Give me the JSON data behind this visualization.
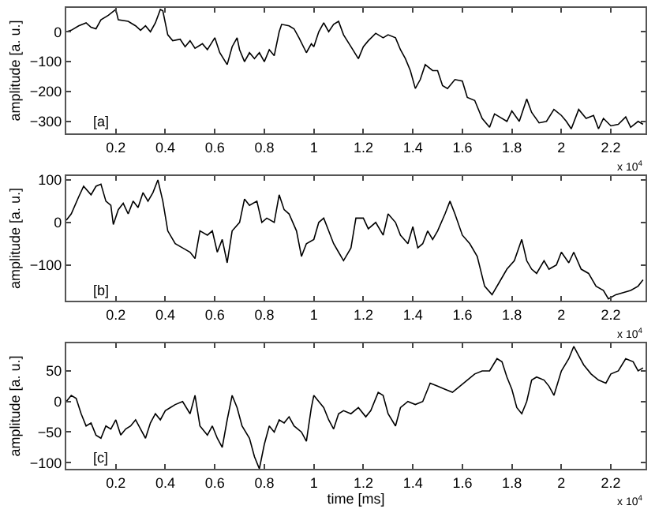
{
  "chart_data": [
    {
      "type": "line",
      "ylabel": "amplitude [a. u.]",
      "annotations": [
        "[a]",
        "x 10$^{4}$"
      ],
      "xlim": [
        0,
        2.34
      ],
      "xticks": [
        0.2,
        0.4,
        0.6,
        0.8,
        1,
        1.2,
        1.4,
        1.6,
        1.8,
        2,
        2.2
      ],
      "ylim": [
        -340,
        80
      ],
      "yticks": [
        -300,
        -200,
        -100,
        0
      ],
      "marker": "none",
      "line_style": "solid",
      "series": [
        {
          "color": "#000000",
          "x": [
            0,
            0.02,
            0.05,
            0.08,
            0.1,
            0.12,
            0.14,
            0.17,
            0.2,
            0.21,
            0.25,
            0.28,
            0.3,
            0.32,
            0.34,
            0.36,
            0.38,
            0.39,
            0.41,
            0.43,
            0.46,
            0.48,
            0.5,
            0.52,
            0.55,
            0.57,
            0.6,
            0.62,
            0.65,
            0.67,
            0.69,
            0.7,
            0.72,
            0.74,
            0.76,
            0.78,
            0.8,
            0.82,
            0.84,
            0.86,
            0.87,
            0.9,
            0.92,
            0.94,
            0.97,
            0.99,
            1.0,
            1.02,
            1.04,
            1.06,
            1.08,
            1.1,
            1.12,
            1.15,
            1.18,
            1.2,
            1.22,
            1.25,
            1.28,
            1.3,
            1.33,
            1.35,
            1.37,
            1.39,
            1.41,
            1.43,
            1.45,
            1.48,
            1.5,
            1.52,
            1.54,
            1.57,
            1.6,
            1.62,
            1.65,
            1.68,
            1.71,
            1.73,
            1.75,
            1.78,
            1.8,
            1.83,
            1.86,
            1.88,
            1.91,
            1.94,
            1.97,
            2.0,
            2.02,
            2.04,
            2.07,
            2.1,
            2.13,
            2.15,
            2.17,
            2.2,
            2.23,
            2.26,
            2.28,
            2.31,
            2.33
          ],
          "values": [
            0,
            5,
            20,
            30,
            15,
            10,
            40,
            55,
            75,
            40,
            35,
            20,
            5,
            20,
            0,
            30,
            75,
            70,
            -10,
            -30,
            -25,
            -50,
            -30,
            -55,
            -40,
            -60,
            -20,
            -70,
            -110,
            -50,
            -20,
            -60,
            -100,
            -70,
            -90,
            -70,
            -100,
            -60,
            -80,
            0,
            25,
            20,
            10,
            -20,
            -70,
            -40,
            -50,
            0,
            30,
            0,
            25,
            35,
            -10,
            -50,
            -90,
            -50,
            -30,
            -5,
            -20,
            -10,
            -20,
            -60,
            -90,
            -130,
            -190,
            -160,
            -110,
            -130,
            -130,
            -180,
            -190,
            -160,
            -165,
            -220,
            -230,
            -290,
            -320,
            -275,
            -285,
            -300,
            -265,
            -300,
            -225,
            -270,
            -305,
            -300,
            -260,
            -280,
            -300,
            -325,
            -260,
            -290,
            -280,
            -325,
            -290,
            -315,
            -310,
            -285,
            -320,
            -300,
            -310
          ]
        }
      ]
    },
    {
      "type": "line",
      "ylabel": "amplitude [a. u.]",
      "annotations": [
        "[b]",
        "x 10$^{4}$"
      ],
      "xlim": [
        0,
        2.34
      ],
      "xticks": [
        0.2,
        0.4,
        0.6,
        0.8,
        1,
        1.2,
        1.4,
        1.6,
        1.8,
        2,
        2.2
      ],
      "ylim": [
        -185,
        110
      ],
      "yticks": [
        -100,
        0,
        100
      ],
      "marker": "none",
      "line_style": "solid",
      "series": [
        {
          "color": "#000000",
          "x": [
            0,
            0.02,
            0.05,
            0.07,
            0.1,
            0.12,
            0.14,
            0.16,
            0.18,
            0.19,
            0.21,
            0.23,
            0.25,
            0.27,
            0.29,
            0.31,
            0.33,
            0.35,
            0.37,
            0.39,
            0.41,
            0.44,
            0.47,
            0.5,
            0.52,
            0.54,
            0.57,
            0.59,
            0.61,
            0.63,
            0.65,
            0.67,
            0.7,
            0.72,
            0.74,
            0.77,
            0.79,
            0.81,
            0.84,
            0.86,
            0.88,
            0.9,
            0.93,
            0.95,
            0.97,
            1.0,
            1.02,
            1.04,
            1.06,
            1.08,
            1.1,
            1.12,
            1.15,
            1.17,
            1.2,
            1.22,
            1.25,
            1.28,
            1.3,
            1.33,
            1.35,
            1.38,
            1.4,
            1.42,
            1.44,
            1.46,
            1.48,
            1.5,
            1.53,
            1.55,
            1.57,
            1.6,
            1.63,
            1.66,
            1.69,
            1.72,
            1.75,
            1.78,
            1.81,
            1.84,
            1.86,
            1.88,
            1.9,
            1.93,
            1.95,
            1.98,
            2.0,
            2.03,
            2.05,
            2.08,
            2.11,
            2.14,
            2.17,
            2.19,
            2.22,
            2.25,
            2.28,
            2.31,
            2.33
          ],
          "values": [
            5,
            20,
            60,
            85,
            65,
            85,
            90,
            50,
            40,
            -5,
            30,
            45,
            20,
            50,
            35,
            70,
            50,
            70,
            100,
            50,
            -20,
            -50,
            -60,
            -70,
            -85,
            -20,
            -30,
            -20,
            -70,
            -40,
            -95,
            -20,
            0,
            55,
            40,
            50,
            0,
            10,
            0,
            65,
            30,
            20,
            -20,
            -80,
            -50,
            -40,
            0,
            10,
            -20,
            -50,
            -70,
            -90,
            -60,
            10,
            10,
            -15,
            0,
            -30,
            20,
            0,
            -30,
            -50,
            -10,
            -60,
            -50,
            -20,
            -40,
            -20,
            20,
            50,
            20,
            -30,
            -50,
            -80,
            -150,
            -170,
            -140,
            -110,
            -90,
            -40,
            -90,
            -110,
            -120,
            -90,
            -110,
            -100,
            -70,
            -95,
            -70,
            -110,
            -120,
            -150,
            -160,
            -180,
            -170,
            -165,
            -160,
            -150,
            -135
          ]
        }
      ]
    },
    {
      "type": "line",
      "xlabel": "time [ms]",
      "ylabel": "amplitude [a. u.]",
      "annotations": [
        "[c]",
        "x 10$^{4}$"
      ],
      "xlim": [
        0,
        2.34
      ],
      "xticks": [
        0.2,
        0.4,
        0.6,
        0.8,
        1,
        1.2,
        1.4,
        1.6,
        1.8,
        2,
        2.2
      ],
      "ylim": [
        -110,
        95
      ],
      "yticks": [
        -100,
        -50,
        0,
        50
      ],
      "marker": "none",
      "line_style": "solid",
      "series": [
        {
          "color": "#000000",
          "x": [
            0,
            0.02,
            0.04,
            0.06,
            0.08,
            0.1,
            0.12,
            0.14,
            0.16,
            0.18,
            0.2,
            0.22,
            0.24,
            0.26,
            0.28,
            0.3,
            0.32,
            0.34,
            0.36,
            0.38,
            0.4,
            0.42,
            0.44,
            0.47,
            0.5,
            0.52,
            0.54,
            0.57,
            0.59,
            0.61,
            0.63,
            0.65,
            0.67,
            0.69,
            0.71,
            0.74,
            0.76,
            0.78,
            0.8,
            0.82,
            0.84,
            0.86,
            0.88,
            0.9,
            0.92,
            0.95,
            0.97,
            0.99,
            1.0,
            1.02,
            1.04,
            1.06,
            1.08,
            1.1,
            1.12,
            1.15,
            1.18,
            1.21,
            1.23,
            1.26,
            1.28,
            1.3,
            1.33,
            1.35,
            1.38,
            1.41,
            1.44,
            1.47,
            1.5,
            1.53,
            1.56,
            1.59,
            1.62,
            1.65,
            1.68,
            1.71,
            1.74,
            1.76,
            1.78,
            1.8,
            1.82,
            1.84,
            1.86,
            1.88,
            1.9,
            1.93,
            1.95,
            1.97,
            2.0,
            2.03,
            2.05,
            2.07,
            2.09,
            2.12,
            2.15,
            2.18,
            2.2,
            2.23,
            2.26,
            2.29,
            2.31,
            2.33
          ],
          "values": [
            0,
            10,
            5,
            -20,
            -40,
            -35,
            -55,
            -60,
            -40,
            -45,
            -30,
            -55,
            -45,
            -40,
            -30,
            -45,
            -60,
            -35,
            -20,
            -30,
            -15,
            -10,
            -5,
            0,
            -20,
            10,
            -40,
            -55,
            -40,
            -60,
            -75,
            -30,
            10,
            -10,
            -40,
            -60,
            -90,
            -110,
            -70,
            -40,
            -50,
            -30,
            -35,
            -25,
            -40,
            -50,
            -65,
            -10,
            10,
            0,
            -10,
            -30,
            -45,
            -20,
            -15,
            -20,
            -10,
            -25,
            -15,
            15,
            10,
            -20,
            -40,
            -10,
            0,
            -5,
            0,
            30,
            25,
            20,
            15,
            25,
            35,
            45,
            50,
            50,
            70,
            65,
            40,
            20,
            -10,
            -20,
            0,
            35,
            40,
            35,
            25,
            10,
            50,
            70,
            90,
            75,
            60,
            45,
            35,
            30,
            45,
            50,
            70,
            65,
            50,
            55
          ]
        }
      ]
    }
  ]
}
